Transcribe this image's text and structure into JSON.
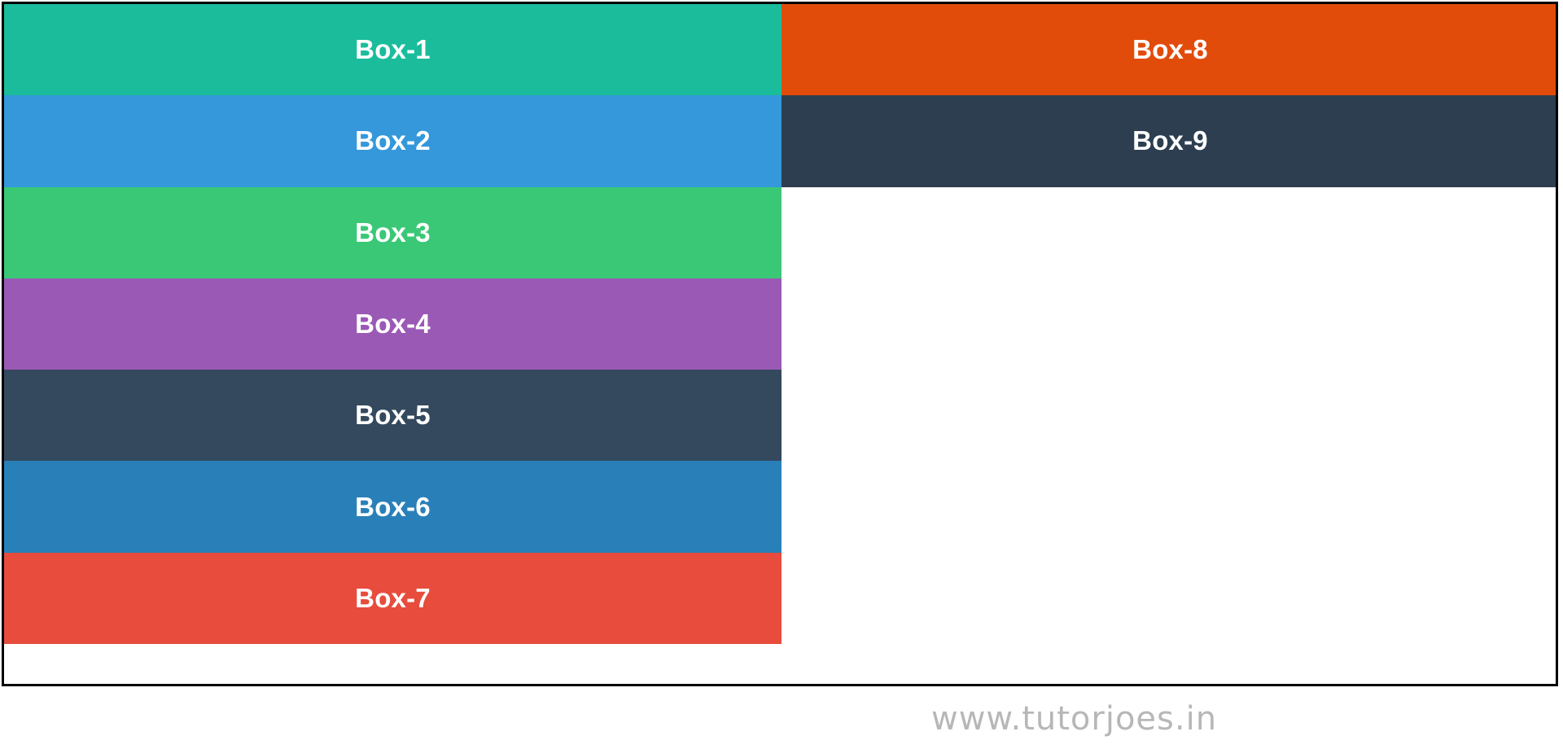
{
  "colors": {
    "frame_border": "#000000",
    "background": "#ffffff",
    "box_text": "#ffffff",
    "watermark_text": "#b7b7b7"
  },
  "left_column": [
    {
      "label": "Box-1",
      "color": "#1abc9c"
    },
    {
      "label": "Box-2",
      "color": "#3498db"
    },
    {
      "label": "Box-3",
      "color": "#3ac876"
    },
    {
      "label": "Box-4",
      "color": "#9b59b6"
    },
    {
      "label": "Box-5",
      "color": "#34495e"
    },
    {
      "label": "Box-6",
      "color": "#2980b9"
    },
    {
      "label": "Box-7",
      "color": "#e74c3c"
    }
  ],
  "right_column": [
    {
      "label": "Box-8",
      "color": "#e24c0b"
    },
    {
      "label": "Box-9",
      "color": "#2c3e50"
    }
  ],
  "watermark": "www.tutorjoes.in"
}
